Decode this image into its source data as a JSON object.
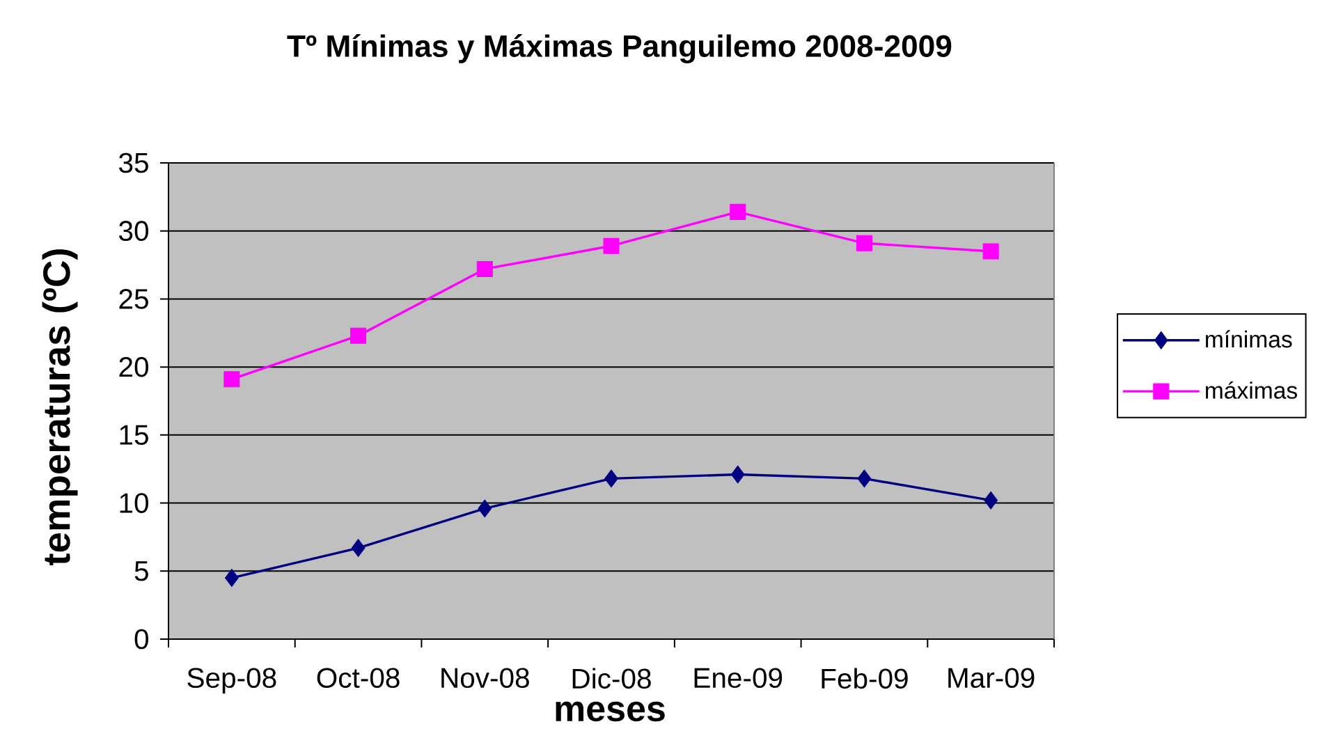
{
  "chart_data": {
    "type": "line",
    "title": "Tº Mínimas y Máximas Panguilemo 2008-2009",
    "xlabel": "meses",
    "ylabel": "temperaturas (ºC)",
    "categories": [
      "Sep-08",
      "Oct-08",
      "Nov-08",
      "Dic-08",
      "Ene-09",
      "Feb-09",
      "Mar-09"
    ],
    "series": [
      {
        "name": "mínimas",
        "color": "#000080",
        "marker": "diamond",
        "values": [
          4.5,
          6.7,
          9.6,
          11.8,
          12.1,
          11.8,
          10.2
        ]
      },
      {
        "name": "máximas",
        "color": "#ff00ff",
        "marker": "square",
        "values": [
          19.1,
          22.3,
          27.2,
          28.9,
          31.4,
          29.1,
          28.5
        ]
      }
    ],
    "ylim": [
      0,
      35
    ],
    "yticks": [
      0,
      5,
      10,
      15,
      20,
      25,
      30,
      35
    ],
    "grid": "y",
    "legend": "right",
    "line_style": "solid"
  }
}
